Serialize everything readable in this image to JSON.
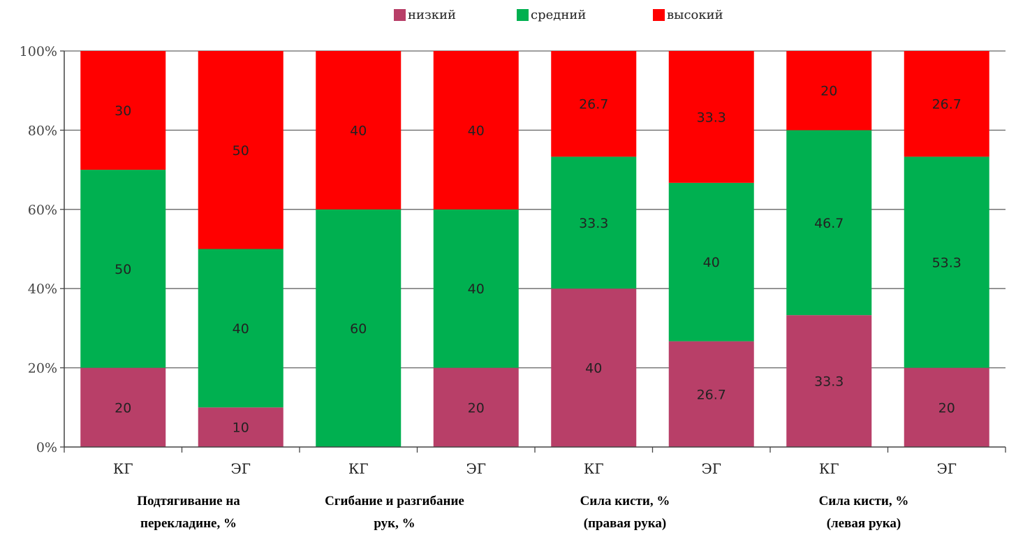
{
  "chart_data": {
    "type": "bar",
    "stacked": true,
    "categories": [
      "КГ",
      "ЭГ",
      "КГ",
      "ЭГ",
      "КГ",
      "ЭГ",
      "КГ",
      "ЭГ"
    ],
    "series": [
      {
        "name": "низкий",
        "color": "#b83f68",
        "values": [
          20,
          10,
          0,
          20,
          40,
          26.7,
          33.3,
          20
        ],
        "labels": [
          "20",
          "10",
          "",
          "20",
          "40",
          "26.7",
          "33.3",
          "20"
        ]
      },
      {
        "name": "средний",
        "color": "#00b050",
        "values": [
          50,
          40,
          60,
          40,
          33.3,
          40,
          46.7,
          53.3
        ],
        "labels": [
          "50",
          "40",
          "60",
          "40",
          "33.3",
          "40",
          "46.7",
          "53.3"
        ]
      },
      {
        "name": "высокий",
        "color": "#ff0000",
        "values": [
          30,
          50,
          40,
          40,
          26.7,
          33.3,
          20,
          26.7
        ],
        "labels": [
          "30",
          "50",
          "40",
          "40",
          "26.7",
          "33.3",
          "20",
          "26.7"
        ]
      }
    ],
    "y_ticks": [
      "0%",
      "20%",
      "40%",
      "60%",
      "80%",
      "100%"
    ],
    "ylim": [
      0,
      100
    ],
    "groups": [
      {
        "line1": "Подтягивание на",
        "line2": "перекладине, %"
      },
      {
        "line1": "Сгибание и разгибание",
        "line2": "рук, %"
      },
      {
        "line1": "Сила кисти, %",
        "line2": "(правая рука)"
      },
      {
        "line1": "Сила кисти, %",
        "line2": "(левая рука)"
      }
    ],
    "legend_position": "top",
    "grid": true
  }
}
